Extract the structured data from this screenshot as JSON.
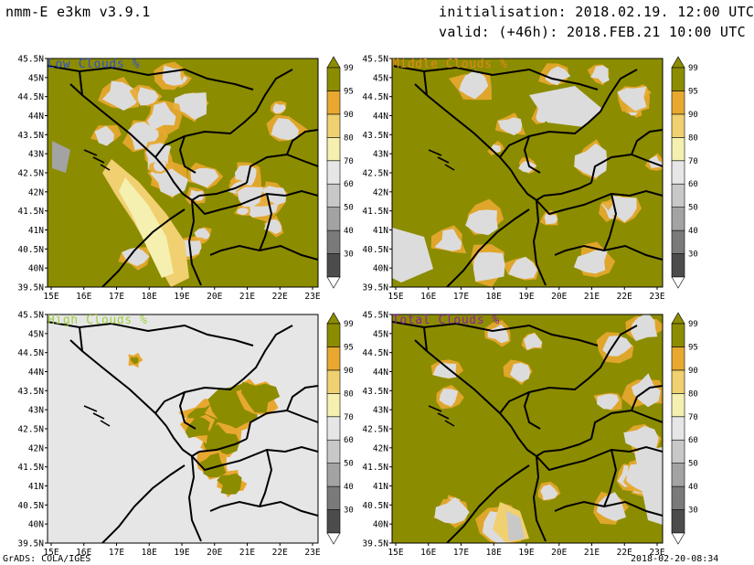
{
  "header": {
    "model": "nmm-E e3km v3.9.1",
    "init": "initialisation: 2018.02.19. 12:00 UTC",
    "valid": "valid: (+46h): 2018.FEB.21 10:00 UTC"
  },
  "footer": {
    "software": "GrADS: COLA/IGES",
    "timestamp": "2018-02-20-08:34"
  },
  "axes": {
    "lat_labels": [
      "45.5N",
      "45N",
      "44.5N",
      "44N",
      "43.5N",
      "43N",
      "42.5N",
      "42N",
      "41.5N",
      "41N",
      "40.5N",
      "40N",
      "39.5N"
    ],
    "lon_labels": [
      "15E",
      "16E",
      "17E",
      "18E",
      "19E",
      "20E",
      "21E",
      "22E",
      "23E"
    ]
  },
  "colorbar": {
    "levels": [
      30,
      40,
      50,
      60,
      70,
      80,
      90,
      95,
      99
    ],
    "colors": [
      "#4c4c4c",
      "#7a7a7a",
      "#a3a3a3",
      "#c8c8c8",
      "#e6e6e6",
      "#f5f0b0",
      "#f0d070",
      "#e8a830",
      "#8c8c00"
    ]
  },
  "panels": [
    {
      "id": "low",
      "title": "Low Clouds %",
      "title_color": "#3050d0",
      "coverage": "heavy"
    },
    {
      "id": "middle",
      "title": "Middle Clouds %",
      "title_color": "#e08a20",
      "coverage": "heavy"
    },
    {
      "id": "high",
      "title": "High Clouds %",
      "title_color": "#a0d040",
      "coverage": "light"
    },
    {
      "id": "total",
      "title": "Total Clouds %",
      "title_color": "#9020a0",
      "coverage": "heavy"
    }
  ],
  "colors": {
    "cloud_olive": "#8c8c00",
    "clear_gray": "#e6e6e6",
    "border": "#000000"
  }
}
